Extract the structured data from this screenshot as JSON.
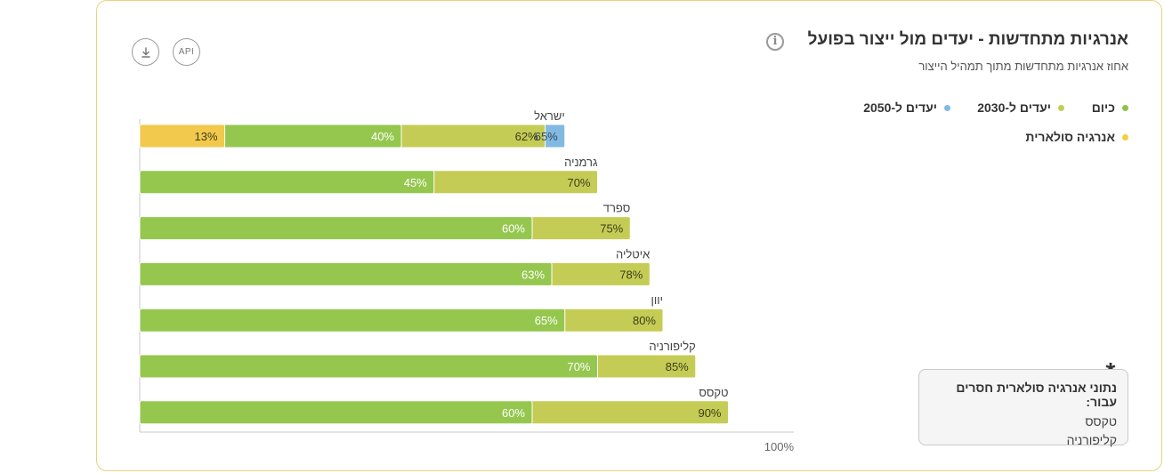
{
  "header": {
    "title": "אנרגיות מתחדשות - יעדים מול ייצור בפועל",
    "subtitle": "אחוז אנרגיות מתחדשות מתוך תמהיל הייצור",
    "info_symbol": "i",
    "api_label": "API",
    "download_symbol": "⤓"
  },
  "legend": [
    {
      "label": "כיום",
      "color": "#8bc34a"
    },
    {
      "label": "יעדים ל-2030",
      "color": "#c5cc55"
    },
    {
      "label": "יעדים ל-2050",
      "color": "#82b9e0"
    },
    {
      "label": "אנרגיה סולארית",
      "color": "#f2cf3f"
    }
  ],
  "note": {
    "star": "*",
    "title": "נתוני אנרגיה סולארית חסרים עבור:",
    "items": [
      "טקסס",
      "קליפורניה"
    ]
  },
  "chart_data": {
    "type": "bar",
    "orientation": "horizontal",
    "stacked": "overlay",
    "categories": [
      "ישראל",
      "גרמניה",
      "ספרד",
      "איטליה",
      "יוון",
      "קליפורניה",
      "טקסס"
    ],
    "series": [
      {
        "name": "יעדים ל-2050",
        "color": "#82b9e0",
        "values": [
          65,
          null,
          null,
          null,
          null,
          null,
          null
        ]
      },
      {
        "name": "יעדים ל-2030",
        "color": "#c5cc55",
        "values": [
          62,
          70,
          75,
          78,
          80,
          85,
          90
        ]
      },
      {
        "name": "כיום",
        "color": "#95c74f",
        "values": [
          40,
          45,
          60,
          63,
          65,
          70,
          60
        ]
      },
      {
        "name": "אנרגיה סולארית",
        "color": "#f2c94c",
        "values": [
          13,
          null,
          null,
          null,
          null,
          null,
          null
        ]
      }
    ],
    "value_suffix": "%",
    "xlim": [
      0,
      100
    ],
    "x_tick_label": "100%",
    "legend_position": "top-right"
  }
}
